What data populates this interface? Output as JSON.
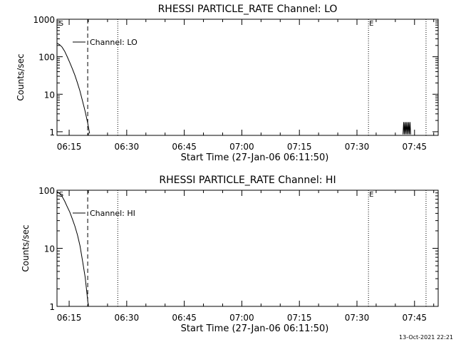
{
  "footer": {
    "timestamp": "13-Oct-2021 22:21"
  },
  "colors": {
    "background": "#ffffff",
    "foreground": "#000000"
  },
  "chart_data": [
    {
      "type": "line",
      "title": "RHESSI PARTICLE_RATE Channel: LO",
      "xlabel": "Start Time (27-Jan-06 06:11:50)",
      "ylabel": "Counts/sec",
      "y_scale": "log",
      "x_range": [
        "06:11:50",
        "07:51:10"
      ],
      "ylim": [
        0.8,
        1000
      ],
      "x_ticks": [
        "06:15",
        "06:30",
        "06:45",
        "07:00",
        "07:15",
        "07:30",
        "07:45"
      ],
      "y_ticks": [
        "1",
        "10",
        "100",
        "1000"
      ],
      "legend": {
        "label": "Channel: LO",
        "placement": "top-left"
      },
      "annotations": [
        {
          "text": "S",
          "at": "06:12:10"
        },
        {
          "text": "E",
          "at": "07:33:00"
        }
      ],
      "vertical_lines": [
        {
          "at": "06:19:50",
          "style": "dashed"
        },
        {
          "at": "06:27:40",
          "style": "dotted"
        },
        {
          "at": "07:33:00",
          "style": "dotted"
        },
        {
          "at": "07:48:00",
          "style": "dotted"
        }
      ],
      "series": [
        {
          "points": [
            [
              "06:11:50",
              230
            ],
            [
              "06:12:30",
              210
            ],
            [
              "06:13:10",
              180
            ],
            [
              "06:13:50",
              140
            ],
            [
              "06:14:30",
              100
            ],
            [
              "06:15:10",
              70
            ],
            [
              "06:15:50",
              48
            ],
            [
              "06:16:30",
              32
            ],
            [
              "06:17:10",
              20
            ],
            [
              "06:17:50",
              12
            ],
            [
              "06:18:30",
              6.5
            ],
            [
              "06:19:10",
              3.5
            ],
            [
              "06:19:50",
              1.7
            ],
            [
              "06:20:20",
              0.9
            ]
          ]
        },
        {
          "points": [
            [
              "07:42:00",
              0.85
            ],
            [
              "07:42:10",
              1.8
            ],
            [
              "07:42:20",
              0.85
            ],
            [
              "07:42:30",
              1.8
            ],
            [
              "07:42:40",
              0.85
            ],
            [
              "07:42:50",
              1.8
            ],
            [
              "07:43:00",
              0.85
            ],
            [
              "07:43:10",
              1.8
            ],
            [
              "07:43:20",
              0.85
            ],
            [
              "07:43:30",
              1.8
            ],
            [
              "07:43:40",
              0.85
            ],
            [
              "07:43:50",
              1.8
            ],
            [
              "07:44:00",
              0.85
            ]
          ]
        }
      ]
    },
    {
      "type": "line",
      "title": "RHESSI PARTICLE_RATE Channel: HI",
      "xlabel": "Start Time (27-Jan-06 06:11:50)",
      "ylabel": "Counts/sec",
      "y_scale": "log",
      "x_range": [
        "06:11:50",
        "07:51:10"
      ],
      "ylim": [
        1,
        100
      ],
      "x_ticks": [
        "06:15",
        "06:30",
        "06:45",
        "07:00",
        "07:15",
        "07:30",
        "07:45"
      ],
      "y_ticks": [
        "1",
        "10",
        "100"
      ],
      "legend": {
        "label": "Channel: HI",
        "placement": "top-left"
      },
      "annotations": [
        {
          "text": "S",
          "at": "06:12:10"
        },
        {
          "text": "E",
          "at": "07:33:00"
        }
      ],
      "vertical_lines": [
        {
          "at": "06:19:50",
          "style": "dashed"
        },
        {
          "at": "06:27:40",
          "style": "dotted"
        },
        {
          "at": "07:33:00",
          "style": "dotted"
        },
        {
          "at": "07:48:00",
          "style": "dotted"
        }
      ],
      "series": [
        {
          "points": [
            [
              "06:11:50",
              95
            ],
            [
              "06:12:30",
              88
            ],
            [
              "06:13:10",
              78
            ],
            [
              "06:13:50",
              65
            ],
            [
              "06:14:30",
              52
            ],
            [
              "06:15:10",
              42
            ],
            [
              "06:15:50",
              32
            ],
            [
              "06:16:30",
              24
            ],
            [
              "06:17:10",
              17
            ],
            [
              "06:17:50",
              11
            ],
            [
              "06:18:30",
              6
            ],
            [
              "06:19:10",
              3.2
            ],
            [
              "06:19:40",
              1.6
            ],
            [
              "06:20:00",
              1.0
            ]
          ]
        }
      ]
    }
  ]
}
